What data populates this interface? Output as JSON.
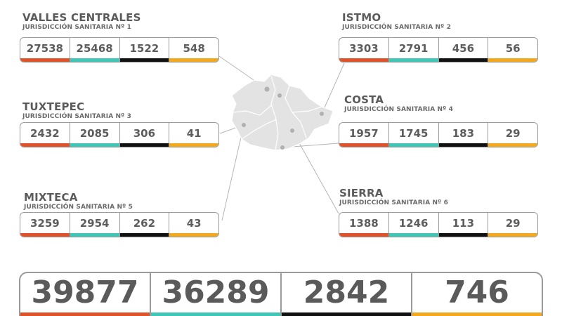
{
  "colors": {
    "confirmed": "#e0522a",
    "recovered": "#3fc6b6",
    "deaths": "#111111",
    "active": "#f3a81e",
    "map_fill": "#e3e3e3"
  },
  "regions": [
    {
      "name": "VALLES CENTRALES",
      "jurisdiction": "JURISDICCIÓN SANITARIA Nº 1",
      "values": [
        "27538",
        "25468",
        "1522",
        "548"
      ]
    },
    {
      "name": "ISTMO",
      "jurisdiction": "JURISDICCIÓN SANITARIA Nº 2",
      "values": [
        "3303",
        "2791",
        "456",
        "56"
      ]
    },
    {
      "name": "TUXTEPEC",
      "jurisdiction": "JURISDICCIÓN SANITARIA Nº 3",
      "values": [
        "2432",
        "2085",
        "306",
        "41"
      ]
    },
    {
      "name": "COSTA",
      "jurisdiction": "JURISDICCIÓN SANITARIA Nº 4",
      "values": [
        "1957",
        "1745",
        "183",
        "29"
      ]
    },
    {
      "name": "MIXTECA",
      "jurisdiction": "JURISDICCIÓN SANITARIA Nº 5",
      "values": [
        "3259",
        "2954",
        "262",
        "43"
      ]
    },
    {
      "name": "SIERRA",
      "jurisdiction": "JURISDICCIÓN SANITARIA Nº 6",
      "values": [
        "1388",
        "1246",
        "113",
        "29"
      ]
    }
  ],
  "totals": [
    "39877",
    "36289",
    "2842",
    "746"
  ]
}
